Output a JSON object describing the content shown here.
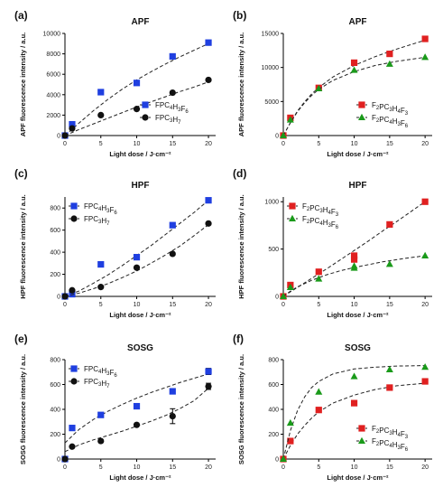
{
  "chart_data": [
    {
      "panel": "(a)",
      "title": "APF",
      "type": "scatter",
      "xlabel": "Light dose / J·cm⁻²",
      "ylabel": "APF fluorescence intensity / a.u.",
      "xlim": [
        0,
        21
      ],
      "ylim": [
        0,
        10000
      ],
      "xticks": [
        0,
        5,
        10,
        15,
        20
      ],
      "yticks": [
        0,
        2000,
        4000,
        6000,
        8000,
        10000
      ],
      "legend_position": "bottom-right",
      "series": [
        {
          "name": "FPC4H3F6",
          "name_html": "FPC<sub>4</sub>H<sub>3</sub>F<sub>6</sub>",
          "marker": "square",
          "color": "#1f3fe0",
          "x": [
            0,
            1,
            5,
            10,
            15,
            20
          ],
          "y": [
            0,
            1100,
            4250,
            5150,
            7750,
            9100
          ],
          "fit": [
            [
              0,
              0
            ],
            [
              2,
              1250
            ],
            [
              4,
              2450
            ],
            [
              6,
              3550
            ],
            [
              8,
              4550
            ],
            [
              10,
              5450
            ],
            [
              12,
              6250
            ],
            [
              14,
              7000
            ],
            [
              16,
              7700
            ],
            [
              18,
              8350
            ],
            [
              20,
              9000
            ]
          ]
        },
        {
          "name": "FPC3H7",
          "name_html": "FPC<sub>3</sub>H<sub>7</sub>",
          "marker": "circle",
          "color": "#111111",
          "x": [
            0,
            1,
            5,
            10,
            15,
            20
          ],
          "y": [
            0,
            700,
            2000,
            2600,
            4200,
            5450
          ],
          "fit": [
            [
              0,
              0
            ],
            [
              2,
              600
            ],
            [
              4,
              1150
            ],
            [
              6,
              1700
            ],
            [
              8,
              2250
            ],
            [
              10,
              2800
            ],
            [
              12,
              3300
            ],
            [
              14,
              3800
            ],
            [
              16,
              4300
            ],
            [
              18,
              4750
            ],
            [
              20,
              5250
            ]
          ]
        }
      ]
    },
    {
      "panel": "(b)",
      "title": "APF",
      "type": "scatter",
      "xlabel": "Light dose / J·cm⁻²",
      "ylabel": "APF fluorescence intensity / a.u.",
      "xlim": [
        0,
        21
      ],
      "ylim": [
        0,
        15000
      ],
      "xticks": [
        0,
        5,
        10,
        15,
        20
      ],
      "yticks": [
        0,
        5000,
        10000,
        15000
      ],
      "legend_position": "bottom-right",
      "series": [
        {
          "name": "F2PC3H4F3",
          "name_html": "F<sub>2</sub>PC<sub>3</sub>H<sub>4</sub>F<sub>3</sub>",
          "marker": "square",
          "color": "#e02020",
          "x": [
            0,
            1,
            5,
            10,
            15,
            20
          ],
          "y": [
            0,
            2600,
            7000,
            10700,
            12000,
            14200
          ],
          "fit": [
            [
              0,
              0
            ],
            [
              1,
              1900
            ],
            [
              2,
              3600
            ],
            [
              3,
              4950
            ],
            [
              4,
              6100
            ],
            [
              5,
              7050
            ],
            [
              7,
              8600
            ],
            [
              10,
              10300
            ],
            [
              13,
              11600
            ],
            [
              16,
              12700
            ],
            [
              20,
              14000
            ]
          ]
        },
        {
          "name": "F2PC4H3F6",
          "name_html": "F<sub>2</sub>PC<sub>4</sub>H<sub>3</sub>F<sub>6</sub>",
          "marker": "triangle",
          "color": "#1a9a1a",
          "x": [
            0,
            1,
            5,
            10,
            15,
            20
          ],
          "y": [
            0,
            2300,
            6900,
            9600,
            10500,
            11500
          ],
          "fit": [
            [
              0,
              0
            ],
            [
              1,
              1900
            ],
            [
              2,
              3500
            ],
            [
              3,
              4800
            ],
            [
              4,
              5900
            ],
            [
              5,
              6800
            ],
            [
              7,
              8100
            ],
            [
              10,
              9400
            ],
            [
              13,
              10300
            ],
            [
              16,
              10900
            ],
            [
              20,
              11500
            ]
          ]
        }
      ]
    },
    {
      "panel": "(c)",
      "title": "HPF",
      "type": "scatter",
      "xlabel": "Light dose / J·cm⁻²",
      "ylabel": "HPF fluorescence intensity / a.u.",
      "xlim": [
        0,
        21
      ],
      "ylim": [
        0,
        900
      ],
      "xticks": [
        0,
        5,
        10,
        15,
        20
      ],
      "yticks": [
        0,
        200,
        400,
        600,
        800
      ],
      "legend_position": "top-left",
      "series": [
        {
          "name": "FPC4H3F6",
          "name_html": "FPC<sub>4</sub>H<sub>3</sub>F<sub>6</sub>",
          "marker": "square",
          "color": "#1f3fe0",
          "x": [
            0,
            1,
            5,
            10,
            15,
            20
          ],
          "y": [
            0,
            20,
            290,
            355,
            645,
            870
          ],
          "fit": [
            [
              0,
              0
            ],
            [
              2,
              50
            ],
            [
              4,
              120
            ],
            [
              6,
              195
            ],
            [
              8,
              280
            ],
            [
              10,
              370
            ],
            [
              12,
              460
            ],
            [
              14,
              560
            ],
            [
              16,
              660
            ],
            [
              18,
              760
            ],
            [
              20,
              870
            ]
          ]
        },
        {
          "name": "FPC3H7",
          "name_html": "FPC<sub>3</sub>H<sub>7</sub>",
          "marker": "circle",
          "color": "#111111",
          "x": [
            0,
            1,
            5,
            10,
            15,
            20
          ],
          "y": [
            0,
            55,
            85,
            260,
            385,
            660
          ],
          "fit": [
            [
              0,
              0
            ],
            [
              2,
              30
            ],
            [
              4,
              70
            ],
            [
              6,
              115
            ],
            [
              8,
              170
            ],
            [
              10,
              230
            ],
            [
              12,
              300
            ],
            [
              14,
              375
            ],
            [
              16,
              455
            ],
            [
              18,
              550
            ],
            [
              20,
              650
            ]
          ]
        }
      ]
    },
    {
      "panel": "(d)",
      "title": "HPF",
      "type": "scatter",
      "xlabel": "Light dose / J·cm⁻²",
      "ylabel": "HPF fluorescence intensity / a.u.",
      "xlim": [
        0,
        21
      ],
      "ylim": [
        0,
        1050
      ],
      "xticks": [
        0,
        5,
        10,
        15,
        20
      ],
      "yticks": [
        0,
        500,
        1000
      ],
      "legend_position": "top-left",
      "series": [
        {
          "name": "F2PC3H4F3",
          "name_html": "F<sub>2</sub>PC<sub>3</sub>H<sub>4</sub>F<sub>3</sub>",
          "marker": "square",
          "color": "#e02020",
          "x": [
            0,
            1,
            5,
            10,
            10,
            15,
            20
          ],
          "y": [
            0,
            120,
            260,
            390,
            430,
            760,
            1000
          ],
          "fit": [
            [
              0,
              0
            ],
            [
              2,
              95
            ],
            [
              4,
              190
            ],
            [
              6,
              285
            ],
            [
              8,
              385
            ],
            [
              10,
              485
            ],
            [
              12,
              585
            ],
            [
              14,
              690
            ],
            [
              16,
              790
            ],
            [
              18,
              895
            ],
            [
              20,
              1000
            ]
          ]
        },
        {
          "name": "F2PC4H3F6",
          "name_html": "F<sub>2</sub>PC<sub>4</sub>H<sub>3</sub>F<sub>6</sub>",
          "marker": "triangle",
          "color": "#1a9a1a",
          "x": [
            0,
            1,
            5,
            10,
            10,
            15,
            20
          ],
          "y": [
            0,
            95,
            185,
            300,
            320,
            340,
            430
          ],
          "fit": [
            [
              0,
              0
            ],
            [
              1,
              55
            ],
            [
              2,
              100
            ],
            [
              4,
              170
            ],
            [
              6,
              225
            ],
            [
              8,
              270
            ],
            [
              10,
              305
            ],
            [
              12,
              335
            ],
            [
              14,
              365
            ],
            [
              17,
              400
            ],
            [
              20,
              430
            ]
          ]
        }
      ]
    },
    {
      "panel": "(e)",
      "title": "SOSG",
      "type": "scatter",
      "xlabel": "Light dose / J·cm⁻²",
      "ylabel": "SOSG fluorescence intensity / a.u.",
      "xlim": [
        0,
        21
      ],
      "ylim": [
        0,
        800
      ],
      "xticks": [
        0,
        5,
        10,
        15,
        20
      ],
      "yticks": [
        0,
        200,
        400,
        600,
        800
      ],
      "legend_position": "top-left",
      "series": [
        {
          "name": "FPC4H3F6",
          "name_html": "FPC<sub>4</sub>H<sub>3</sub>F<sub>6</sub>",
          "marker": "square",
          "color": "#1f3fe0",
          "x": [
            0,
            1,
            5,
            10,
            15,
            20
          ],
          "y": [
            0,
            250,
            355,
            425,
            545,
            705
          ],
          "fit": [
            [
              0,
              130
            ],
            [
              2,
              240
            ],
            [
              4,
              320
            ],
            [
              6,
              385
            ],
            [
              8,
              440
            ],
            [
              10,
              490
            ],
            [
              12,
              535
            ],
            [
              14,
              575
            ],
            [
              16,
              615
            ],
            [
              18,
              650
            ],
            [
              20,
              685
            ]
          ],
          "err": [
            0,
            0,
            0,
            0,
            0,
            25
          ]
        },
        {
          "name": "FPC3H7",
          "name_html": "FPC<sub>3</sub>H<sub>7</sub>",
          "marker": "circle",
          "color": "#111111",
          "x": [
            0,
            1,
            5,
            10,
            15,
            20
          ],
          "y": [
            0,
            100,
            145,
            275,
            345,
            585
          ],
          "fit": [
            [
              0,
              60
            ],
            [
              2,
              115
            ],
            [
              4,
              155
            ],
            [
              6,
              190
            ],
            [
              8,
              225
            ],
            [
              10,
              265
            ],
            [
              12,
              305
            ],
            [
              14,
              350
            ],
            [
              16,
              405
            ],
            [
              18,
              470
            ],
            [
              20,
              570
            ]
          ],
          "err": [
            0,
            0,
            0,
            0,
            60,
            25
          ]
        }
      ]
    },
    {
      "panel": "(f)",
      "title": "SOSG",
      "type": "scatter",
      "xlabel": "Light dose / J·cm⁻²",
      "ylabel": "SOSG fluorescence intensity / a.u.",
      "xlim": [
        0,
        21
      ],
      "ylim": [
        0,
        800
      ],
      "xticks": [
        0,
        5,
        10,
        15,
        20
      ],
      "yticks": [
        0,
        200,
        400,
        600,
        800
      ],
      "legend_position": "bottom-right",
      "series": [
        {
          "name": "F2PC3H4F3",
          "name_html": "F<sub>2</sub>PC<sub>3</sub>H<sub>4</sub>F<sub>3</sub>",
          "marker": "square",
          "color": "#e02020",
          "x": [
            0,
            1,
            5,
            10,
            15,
            20
          ],
          "y": [
            0,
            145,
            395,
            450,
            575,
            625
          ],
          "fit": [
            [
              0,
              0
            ],
            [
              1,
              110
            ],
            [
              2,
              200
            ],
            [
              3,
              270
            ],
            [
              4,
              330
            ],
            [
              5,
              380
            ],
            [
              7,
              450
            ],
            [
              10,
              515
            ],
            [
              13,
              560
            ],
            [
              16,
              590
            ],
            [
              20,
              610
            ]
          ]
        },
        {
          "name": "F2PC4H3F6",
          "name_html": "F<sub>2</sub>PC<sub>4</sub>H<sub>3</sub>F<sub>6</sub>",
          "marker": "triangle",
          "color": "#1a9a1a",
          "x": [
            0,
            1,
            5,
            10,
            15,
            20
          ],
          "y": [
            0,
            290,
            540,
            665,
            720,
            740
          ],
          "fit": [
            [
              0,
              0
            ],
            [
              1,
              230
            ],
            [
              2,
              390
            ],
            [
              3,
              500
            ],
            [
              4,
              575
            ],
            [
              5,
              625
            ],
            [
              7,
              685
            ],
            [
              10,
              725
            ],
            [
              13,
              740
            ],
            [
              16,
              748
            ],
            [
              20,
              752
            ]
          ]
        }
      ]
    }
  ]
}
